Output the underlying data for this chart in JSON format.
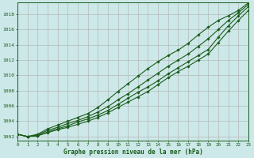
{
  "xlabel": "Graphe pression niveau de la mer (hPa)",
  "background_color": "#cce8e8",
  "grid_color": "#b0b0b0",
  "line_color": "#1a5c1a",
  "hours": [
    0,
    1,
    2,
    3,
    4,
    5,
    6,
    7,
    8,
    9,
    10,
    11,
    12,
    13,
    14,
    15,
    16,
    17,
    18,
    19,
    20,
    21,
    22,
    23
  ],
  "line1": [
    1002.3,
    1002.0,
    1002.1,
    1002.6,
    1003.0,
    1003.4,
    1003.9,
    1004.3,
    1004.8,
    1005.4,
    1006.2,
    1007.0,
    1007.8,
    1008.5,
    1009.3,
    1010.2,
    1011.0,
    1011.8,
    1012.6,
    1013.4,
    1015.0,
    1016.5,
    1017.8,
    1019.0
  ],
  "line2": [
    1002.3,
    1002.0,
    1002.2,
    1002.8,
    1003.2,
    1003.7,
    1004.1,
    1004.6,
    1005.2,
    1005.9,
    1006.8,
    1007.6,
    1008.5,
    1009.4,
    1010.3,
    1011.2,
    1012.0,
    1012.8,
    1013.8,
    1014.8,
    1016.0,
    1017.2,
    1018.2,
    1019.3
  ],
  "line3": [
    1002.3,
    1002.0,
    1002.3,
    1003.0,
    1003.5,
    1004.0,
    1004.5,
    1005.0,
    1005.8,
    1006.8,
    1007.9,
    1008.9,
    1009.9,
    1010.9,
    1011.8,
    1012.6,
    1013.3,
    1014.2,
    1015.3,
    1016.3,
    1017.2,
    1017.8,
    1018.5,
    1019.5
  ],
  "line4": [
    1002.3,
    1002.0,
    1002.1,
    1002.5,
    1002.9,
    1003.2,
    1003.6,
    1004.0,
    1004.5,
    1005.1,
    1005.8,
    1006.5,
    1007.2,
    1007.9,
    1008.8,
    1009.7,
    1010.5,
    1011.2,
    1012.0,
    1012.8,
    1014.3,
    1015.8,
    1017.2,
    1018.5
  ],
  "ylim_min": 1001.5,
  "ylim_max": 1019.5,
  "yticks": [
    1002,
    1004,
    1006,
    1008,
    1010,
    1012,
    1014,
    1016,
    1018
  ],
  "marker": "D",
  "marker_size": 1.8,
  "line_width": 0.8
}
